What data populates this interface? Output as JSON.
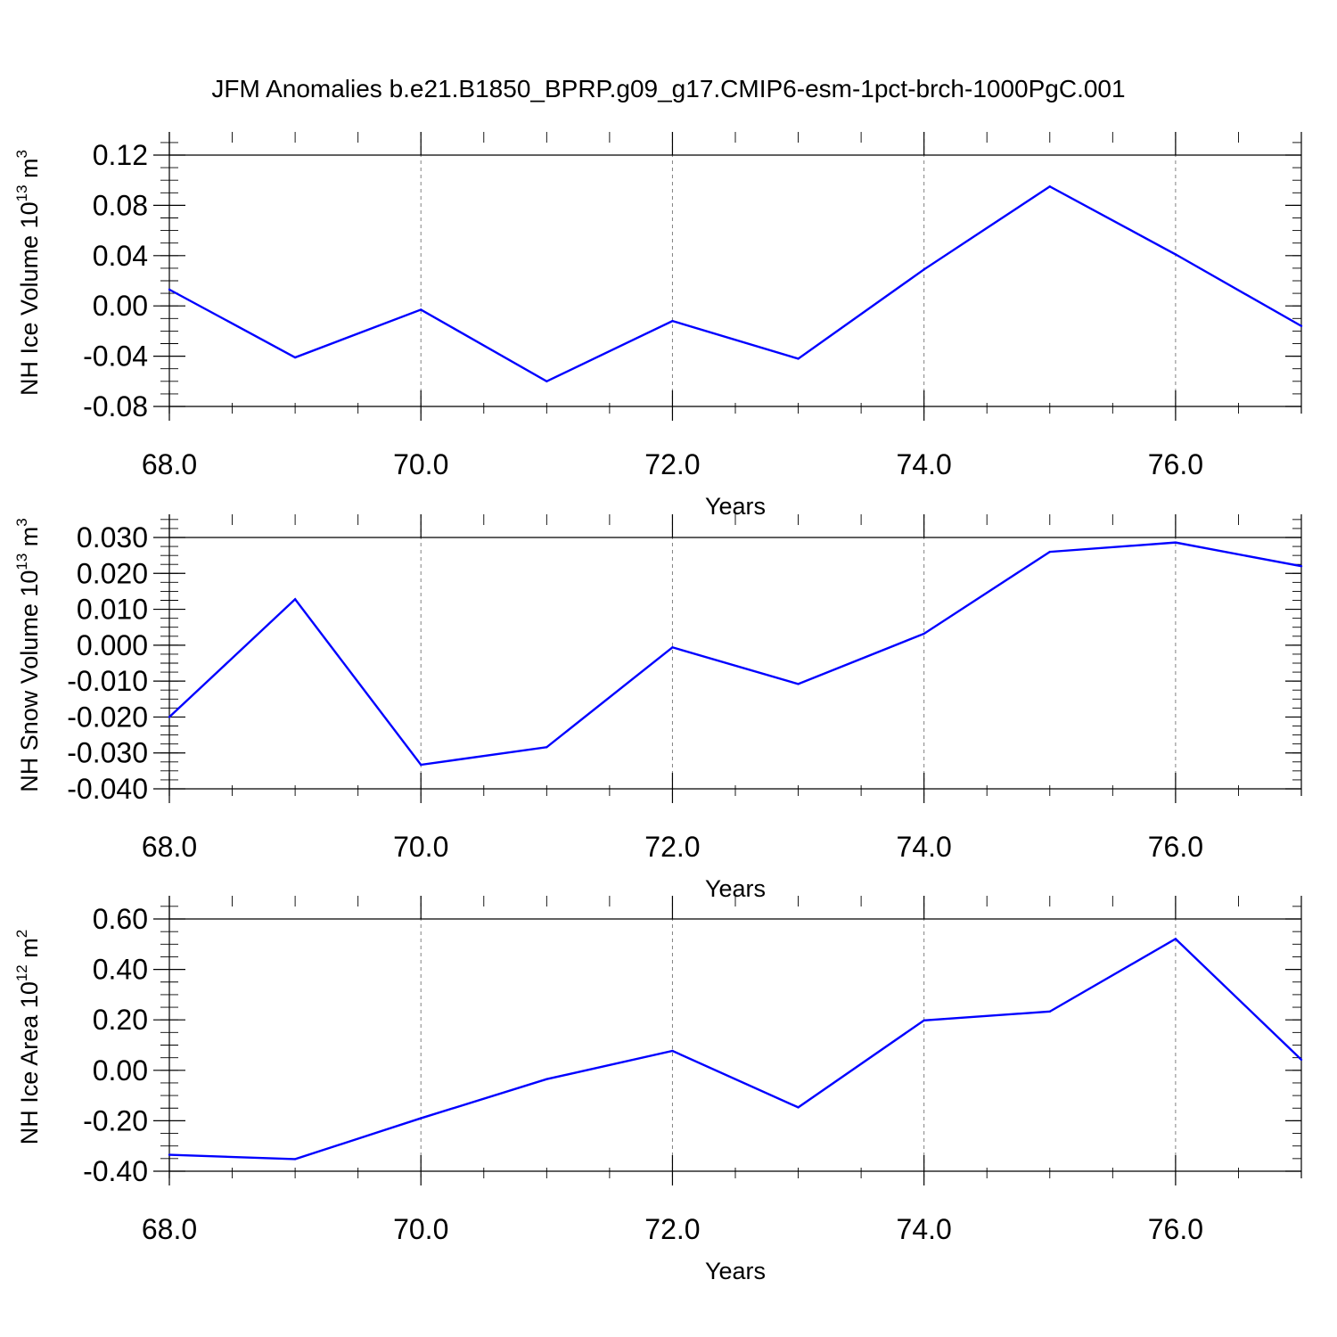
{
  "title": "JFM Anomalies b.e21.B1850_BPRP.g09_g17.CMIP6-esm-1pct-brch-1000PgC.001",
  "colors": {
    "line": "#0000ff",
    "axis": "#000000",
    "grid": "#808080"
  },
  "chart_data": [
    {
      "type": "line",
      "xlabel": "Years",
      "ylabel": "NH Ice Volume 10",
      "ylabel_sup1": "13",
      "ylabel_unit": " m",
      "ylabel_sup2": "3",
      "xlim": [
        68,
        77
      ],
      "ylim": [
        -0.09,
        0.12
      ],
      "xticks": [
        68,
        70,
        72,
        74,
        76
      ],
      "xtick_labels": [
        "68.0",
        "70.0",
        "72.0",
        "74.0",
        "76.0"
      ],
      "yticks": [
        0.12,
        0.08,
        0.04,
        0.0,
        -0.04,
        -0.08
      ],
      "ytick_labels": [
        "0.12",
        "0.08",
        "0.04",
        "0.00",
        "-0.04",
        "-0.08"
      ],
      "vgrid": [
        70,
        72,
        74,
        76
      ],
      "x": [
        68,
        69,
        70,
        71,
        72,
        73,
        74,
        75,
        76,
        77
      ],
      "y": [
        0.013,
        -0.041,
        -0.003,
        -0.06,
        -0.012,
        -0.042,
        0.029,
        0.095,
        0.041,
        -0.016
      ]
    },
    {
      "type": "line",
      "xlabel": "Years",
      "ylabel": "NH Snow Volume 10",
      "ylabel_sup1": "13",
      "ylabel_unit": " m",
      "ylabel_sup2": "3",
      "xlim": [
        68,
        77
      ],
      "ylim": [
        -0.04,
        0.03
      ],
      "xticks": [
        68,
        70,
        72,
        74,
        76
      ],
      "xtick_labels": [
        "68.0",
        "70.0",
        "72.0",
        "74.0",
        "76.0"
      ],
      "yticks": [
        0.03,
        0.02,
        0.01,
        0.0,
        -0.01,
        -0.02,
        -0.03,
        -0.04
      ],
      "ytick_labels": [
        "0.030",
        "0.020",
        "0.010",
        "0.000",
        "-0.010",
        "-0.020",
        "-0.030",
        "-0.040"
      ],
      "vgrid": [
        70,
        72,
        74,
        76
      ],
      "x": [
        68,
        69,
        70,
        71,
        72,
        73,
        74,
        75,
        76,
        77
      ],
      "y": [
        -0.02,
        0.0128,
        -0.0333,
        -0.0284,
        -0.0006,
        -0.0108,
        0.0032,
        0.026,
        0.0286,
        0.022
      ]
    },
    {
      "type": "line",
      "xlabel": "Years",
      "ylabel": "NH Ice Area 10",
      "ylabel_sup1": "12",
      "ylabel_unit": " m",
      "ylabel_sup2": "2",
      "xlim": [
        68,
        77
      ],
      "ylim": [
        -0.4,
        0.6
      ],
      "xticks": [
        68,
        70,
        72,
        74,
        76
      ],
      "xtick_labels": [
        "68.0",
        "70.0",
        "72.0",
        "74.0",
        "76.0"
      ],
      "yticks": [
        0.6,
        0.4,
        0.2,
        0.0,
        -0.2,
        -0.4
      ],
      "ytick_labels": [
        "0.60",
        "0.40",
        "0.20",
        "0.00",
        "-0.20",
        "-0.40"
      ],
      "vgrid": [
        70,
        72,
        74,
        76
      ],
      "x": [
        68,
        69,
        70,
        71,
        72,
        73,
        74,
        75,
        76,
        77
      ],
      "y": [
        -0.335,
        -0.352,
        -0.19,
        -0.035,
        0.077,
        -0.147,
        0.198,
        0.233,
        0.521,
        0.042
      ]
    }
  ]
}
